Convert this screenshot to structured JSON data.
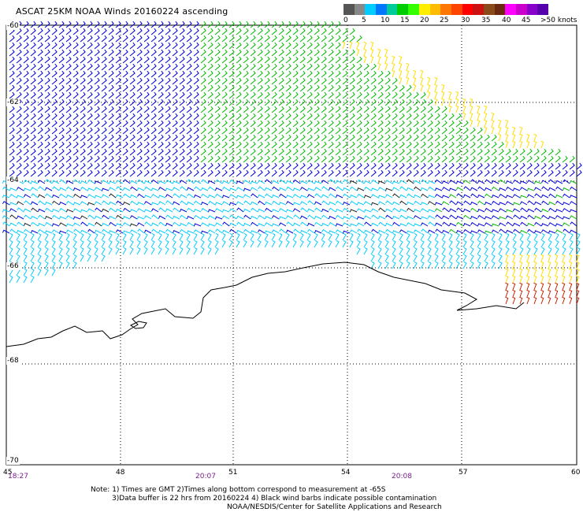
{
  "title": "ASCAT 25KM NOAA Winds 20160224 ascending",
  "legend": {
    "colors": [
      "#555555",
      "#888888",
      "#00ccff",
      "#0077ff",
      "#00cc99",
      "#00cc00",
      "#33ff00",
      "#ffee00",
      "#ffbb00",
      "#ff7700",
      "#ff4400",
      "#ff0000",
      "#cc1111",
      "#8b4a1a",
      "#6b2a10",
      "#ff00ff",
      "#cc00cc",
      "#8800cc",
      "#5500aa"
    ],
    "labels": [
      "0",
      "5",
      "10",
      "15",
      "20",
      "25",
      "30",
      "35",
      "40",
      "45",
      ">50 knots"
    ]
  },
  "lat_labels": [
    "-60",
    "-62",
    "-64",
    "-66",
    "-68",
    "-70"
  ],
  "lon_labels": [
    "45",
    "48",
    "51",
    "54",
    "57",
    "60"
  ],
  "times": [
    "18:27",
    "20:07",
    "20:08"
  ],
  "notes": {
    "line1": "Note: 1) Times are GMT 2)Times along bottom correspond to measurement at -65S",
    "line2": "3)Data buffer is 22 hrs from 20160224 4) Black wind barbs indicate possible contamination",
    "line3": "NOAA/NESDIS/Center for Satellite Applications and Research"
  },
  "barb_colors": {
    "calm": "#222222",
    "light": "#00ccff",
    "moderate": "#0000dd",
    "fresh": "#00bb00",
    "strong": "#ffdd00",
    "gale": "#cc2200"
  }
}
